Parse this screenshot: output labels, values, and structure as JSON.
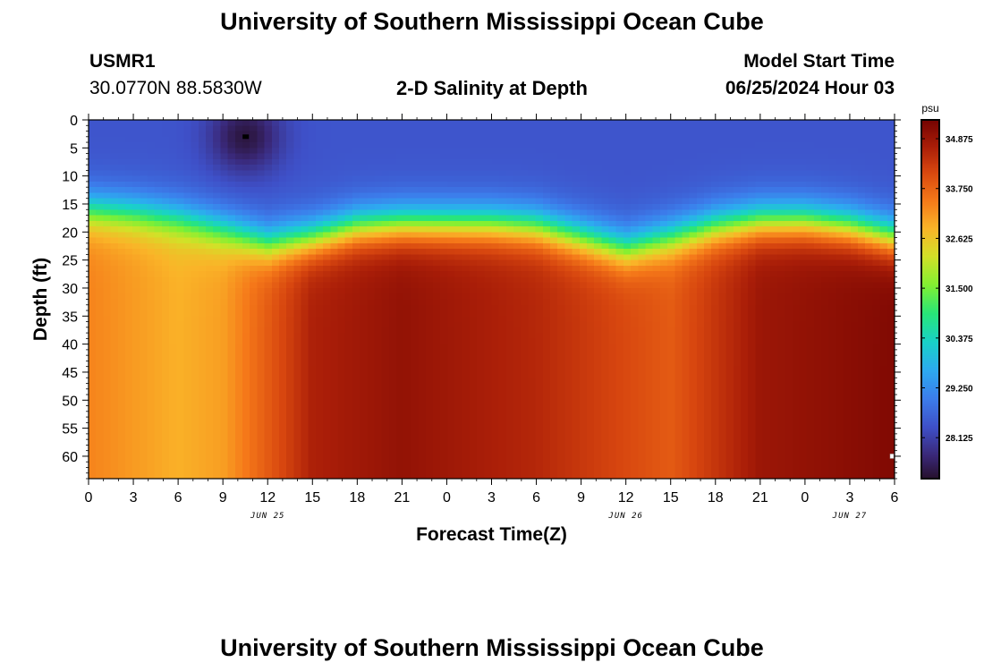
{
  "page": {
    "title_top": "University of Southern Mississippi Ocean Cube",
    "title_bottom": "University of Southern Mississippi Ocean Cube",
    "station": "USMR1",
    "coordinates": "30.0770N  88.5830W",
    "subtitle": "2-D Salinity at Depth",
    "model_start_label": "Model Start Time",
    "model_start_value": "06/25/2024 Hour 03"
  },
  "chart_data": {
    "type": "heatmap",
    "title": "2-D Salinity at Depth",
    "xlabel": "Forecast Time(Z)",
    "ylabel": "Depth (ft)",
    "x_range_hours": [
      0,
      54
    ],
    "y_range_ft": [
      0,
      64
    ],
    "x_ticks": [
      {
        "h": 0,
        "label": "0"
      },
      {
        "h": 3,
        "label": "3"
      },
      {
        "h": 6,
        "label": "6"
      },
      {
        "h": 9,
        "label": "9"
      },
      {
        "h": 12,
        "label": "12"
      },
      {
        "h": 15,
        "label": "15"
      },
      {
        "h": 18,
        "label": "18"
      },
      {
        "h": 21,
        "label": "21"
      },
      {
        "h": 24,
        "label": "0"
      },
      {
        "h": 27,
        "label": "3"
      },
      {
        "h": 30,
        "label": "6"
      },
      {
        "h": 33,
        "label": "9"
      },
      {
        "h": 36,
        "label": "12"
      },
      {
        "h": 39,
        "label": "15"
      },
      {
        "h": 42,
        "label": "18"
      },
      {
        "h": 45,
        "label": "21"
      },
      {
        "h": 48,
        "label": "0"
      },
      {
        "h": 51,
        "label": "3"
      },
      {
        "h": 54,
        "label": "6"
      }
    ],
    "date_labels": [
      {
        "h": 12,
        "label": "JUN 25"
      },
      {
        "h": 36,
        "label": "JUN 26"
      },
      {
        "h": 51,
        "label": "JUN 27"
      }
    ],
    "y_ticks": [
      0,
      5,
      10,
      15,
      20,
      25,
      30,
      35,
      40,
      45,
      50,
      55,
      60
    ],
    "y_tick_labels": [
      "0",
      "5",
      "10",
      "15",
      "20",
      "25",
      "30",
      "35",
      "40",
      "45",
      "50",
      "55",
      "60"
    ],
    "colorbar": {
      "unit": "psu",
      "min": 27.2,
      "max": 35.3,
      "ticks": [
        34.875,
        33.75,
        32.625,
        31.5,
        30.375,
        29.25,
        28.125
      ],
      "tick_labels": [
        "34.875",
        "33.750",
        "32.625",
        "31.500",
        "30.375",
        "29.250",
        "28.125"
      ]
    },
    "halocline_depth_ft": [
      {
        "h": 0,
        "d": 16
      },
      {
        "h": 3,
        "d": 16.5
      },
      {
        "h": 6,
        "d": 17.5
      },
      {
        "h": 9,
        "d": 19.5
      },
      {
        "h": 12,
        "d": 22
      },
      {
        "h": 15,
        "d": 21
      },
      {
        "h": 18,
        "d": 19
      },
      {
        "h": 21,
        "d": 18.5
      },
      {
        "h": 24,
        "d": 18.5
      },
      {
        "h": 27,
        "d": 18.5
      },
      {
        "h": 30,
        "d": 19
      },
      {
        "h": 33,
        "d": 21
      },
      {
        "h": 36,
        "d": 23
      },
      {
        "h": 39,
        "d": 21
      },
      {
        "h": 42,
        "d": 19
      },
      {
        "h": 45,
        "d": 18
      },
      {
        "h": 48,
        "d": 18
      },
      {
        "h": 51,
        "d": 19
      },
      {
        "h": 54,
        "d": 21
      }
    ],
    "surface_salinity_psu": 28.4,
    "bottom_salinity_psu": [
      {
        "h": 0,
        "s": 33.4
      },
      {
        "h": 6,
        "s": 32.9
      },
      {
        "h": 9,
        "s": 33.1
      },
      {
        "h": 15,
        "s": 34.7
      },
      {
        "h": 21,
        "s": 35.0
      },
      {
        "h": 30,
        "s": 34.6
      },
      {
        "h": 39,
        "s": 33.9
      },
      {
        "h": 45,
        "s": 34.9
      },
      {
        "h": 54,
        "s": 35.2
      }
    ],
    "fresh_lens": {
      "h": 10.5,
      "d": 3,
      "s": 27.3
    },
    "markers": [
      {
        "h": 10.5,
        "d": 3,
        "style": "black"
      },
      {
        "h": 54,
        "d": 60,
        "style": "white"
      }
    ]
  }
}
